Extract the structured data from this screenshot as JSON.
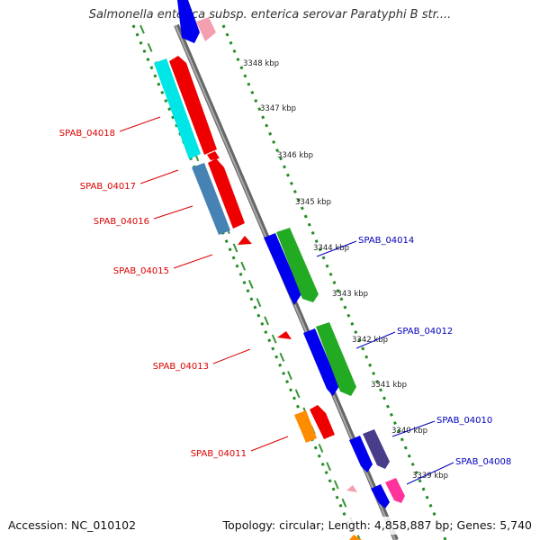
{
  "title": "Salmonella enterica subsp. enterica serovar Paratyphi B str....",
  "accession": "Accession: NC_010102",
  "summary": "Topology: circular; Length: 4,858,887 bp; Genes: 5,740",
  "ticks": [
    "3348 kbp",
    "3347 kbp",
    "3346 kbp",
    "3345 kbp",
    "3344 kbp",
    "3343 kbp",
    "3342 kbp",
    "3341 kbp",
    "3340 kbp",
    "3339 kbp"
  ],
  "left_labels": [
    "SPAB_04018",
    "SPAB_04017",
    "SPAB_04016",
    "SPAB_04015",
    "SPAB_04013",
    "SPAB_04011"
  ],
  "right_labels": [
    "SPAB_04014",
    "SPAB_04012",
    "SPAB_04010",
    "SPAB_04008"
  ],
  "colors": {
    "backbone": "#8a8a8a",
    "dots": "#228b22",
    "left_label": "#dd0000",
    "right_label": "#0000bb",
    "red": "#ee0000",
    "blue": "#0000ee",
    "green": "#22aa22",
    "cyan": "#00e5e5",
    "steelblue": "#4682b4",
    "orange": "#ff8c00",
    "purple": "#483d8b",
    "pink": "#ff3399",
    "lightpink": "#f4a0b0"
  }
}
